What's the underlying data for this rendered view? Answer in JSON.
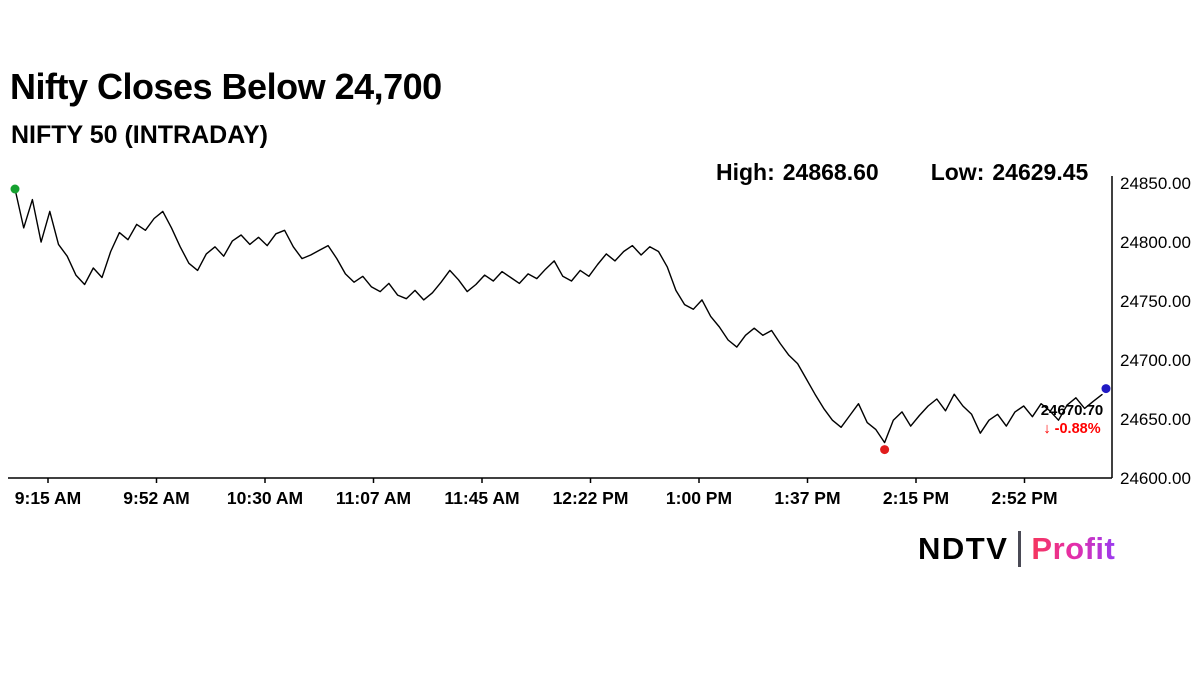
{
  "header": {
    "title": "Nifty Closes Below 24,700",
    "subtitle": "NIFTY 50 (INTRADAY)"
  },
  "stats": {
    "high_label": "High:",
    "high_value": "24868.60",
    "low_label": "Low:",
    "low_value": "24629.45"
  },
  "annotation": {
    "price": "24670.70",
    "change": "↓ -0.88%"
  },
  "logo": {
    "ndtv": "NDTV",
    "separator": "|",
    "profit": "Profit",
    "profit_gradient": [
      "#f5365c",
      "#e62ea8",
      "#9b3bf0"
    ]
  },
  "colors": {
    "background": "#ffffff",
    "text": "#000000",
    "line": "#000000",
    "change_red": "#ff0000",
    "open_marker_green": "#15a12f",
    "low_marker_red": "#e11d1d",
    "close_marker_blue": "#2019c4"
  },
  "chart_data": {
    "type": "line",
    "title": "NIFTY 50 (INTRADAY)",
    "xlabel": "",
    "ylabel": "",
    "x_tick_labels": [
      "9:15 AM",
      "9:52 AM",
      "10:30 AM",
      "11:07 AM",
      "11:45 AM",
      "12:22 PM",
      "1:00 PM",
      "1:37 PM",
      "2:15 PM",
      "2:52 PM"
    ],
    "y_ticks": [
      24600,
      24650,
      24700,
      24750,
      24800,
      24850
    ],
    "y_tick_labels": [
      "24600.00",
      "24650.00",
      "24700.00",
      "24750.00",
      "24800.00",
      "24850.00"
    ],
    "ylim": [
      24600,
      24856
    ],
    "grid": false,
    "legend": false,
    "high": 24868.6,
    "low": 24629.45,
    "last_price": 24670.7,
    "change_percent": -0.88,
    "session_start": "9:15 AM",
    "session_end": "3:30 PM",
    "interval_minutes": 3,
    "line_color": "#000000",
    "marker_colors": {
      "open": "#15a12f",
      "low": "#e11d1d",
      "close": "#2019c4"
    },
    "series": [
      {
        "name": "NIFTY 50",
        "values": [
          24845,
          24812,
          24836,
          24800,
          24826,
          24798,
          24788,
          24772,
          24764,
          24778,
          24770,
          24792,
          24808,
          24802,
          24815,
          24810,
          24820,
          24826,
          24812,
          24796,
          24782,
          24776,
          24790,
          24796,
          24788,
          24801,
          24806,
          24798,
          24804,
          24797,
          24807,
          24810,
          24796,
          24786,
          24789,
          24793,
          24797,
          24786,
          24773,
          24766,
          24771,
          24762,
          24758,
          24765,
          24755,
          24752,
          24759,
          24751,
          24757,
          24766,
          24776,
          24768,
          24758,
          24764,
          24772,
          24767,
          24775,
          24770,
          24765,
          24773,
          24769,
          24777,
          24784,
          24771,
          24767,
          24776,
          24771,
          24781,
          24790,
          24784,
          24792,
          24797,
          24789,
          24796,
          24792,
          24779,
          24759,
          24747,
          24743,
          24751,
          24737,
          24728,
          24717,
          24711,
          24721,
          24727,
          24721,
          24725,
          24714,
          24704,
          24697,
          24684,
          24671,
          24659,
          24649,
          24643,
          24653,
          24663,
          24647,
          24641,
          24630,
          24649,
          24656,
          24644,
          24653,
          24661,
          24667,
          24657,
          24671,
          24661,
          24654,
          24638,
          24649,
          24654,
          24644,
          24656,
          24661,
          24652,
          24663,
          24657,
          24649,
          24662,
          24668,
          24659,
          24665,
          24670.7
        ]
      }
    ]
  }
}
